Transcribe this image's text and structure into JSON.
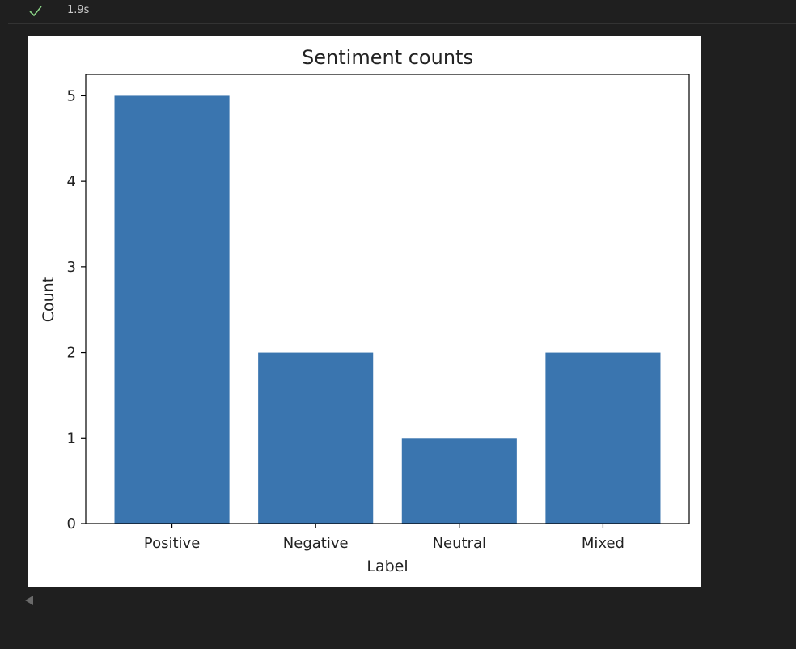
{
  "cell": {
    "status": "success",
    "exec_time": "1.9s"
  },
  "chart_data": {
    "type": "bar",
    "title": "Sentiment counts",
    "xlabel": "Label",
    "ylabel": "Count",
    "categories": [
      "Positive",
      "Negative",
      "Neutral",
      "Mixed"
    ],
    "values": [
      5,
      2,
      1,
      2
    ],
    "ylim": [
      0,
      5.25
    ],
    "yticks": [
      0,
      1,
      2,
      3,
      4,
      5
    ],
    "bar_color": "#3a75af",
    "grid": false,
    "legend": "none"
  },
  "icons": {
    "status": "check-icon",
    "collapse": "collapse-arrow-icon"
  }
}
